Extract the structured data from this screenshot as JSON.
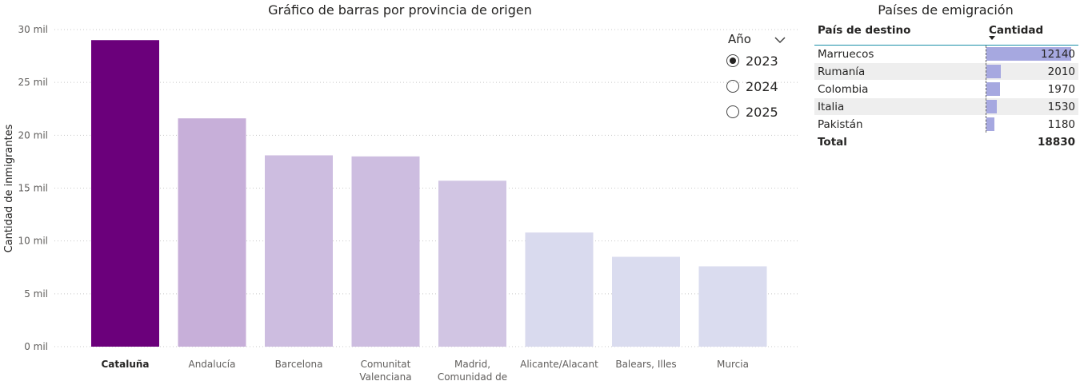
{
  "chart": {
    "title": "Gráfico de barras por provincia de origen"
  },
  "chart_data": {
    "type": "bar",
    "title": "Gráfico de barras por provincia de origen",
    "xlabel": "",
    "ylabel": "Cantidad de inmigrantes",
    "ylim": [
      0,
      30000
    ],
    "yticks": [
      0,
      5000,
      10000,
      15000,
      20000,
      25000,
      30000
    ],
    "ytick_labels": [
      "0 mil",
      "5 mil",
      "10 mil",
      "15 mil",
      "20 mil",
      "25 mil",
      "30 mil"
    ],
    "grid": true,
    "categories": [
      [
        "Cataluña"
      ],
      [
        "Andalucía"
      ],
      [
        "Barcelona"
      ],
      [
        "Comunitat",
        "Valenciana"
      ],
      [
        "Madrid,",
        "Comunidad de"
      ],
      [
        "Alicante/Alacant"
      ],
      [
        "Balears, Illes"
      ],
      [
        "Murcia"
      ]
    ],
    "values": [
      29000,
      21600,
      18100,
      18000,
      15700,
      10800,
      8500,
      7600
    ],
    "colors": [
      "#6b007b",
      "#c7afd9",
      "#cdbde0",
      "#cdbde0",
      "#d1c5e3",
      "#d9daee",
      "#dadcef",
      "#dadcef"
    ],
    "highlighted_category": "Cataluña"
  },
  "slicer": {
    "title": "Año",
    "options": [
      {
        "label": "2023",
        "selected": true
      },
      {
        "label": "2024",
        "selected": false
      },
      {
        "label": "2025",
        "selected": false
      }
    ]
  },
  "table": {
    "title": "Países de emigración",
    "col_country": "País de destino",
    "col_amount": "Cantidad",
    "rows": [
      {
        "country": "Marruecos",
        "amount": "12140",
        "value": 12140
      },
      {
        "country": "Rumanía",
        "amount": "2010",
        "value": 2010
      },
      {
        "country": "Colombia",
        "amount": "1970",
        "value": 1970
      },
      {
        "country": "Italia",
        "amount": "1530",
        "value": 1530
      },
      {
        "country": "Pakistán",
        "amount": "1180",
        "value": 1180
      }
    ],
    "total_label": "Total",
    "total_value": "18830"
  },
  "colors": {
    "accent": "#6b007b",
    "data_bar": "#a6a8e0",
    "table_rule": "#1a8fa8"
  }
}
